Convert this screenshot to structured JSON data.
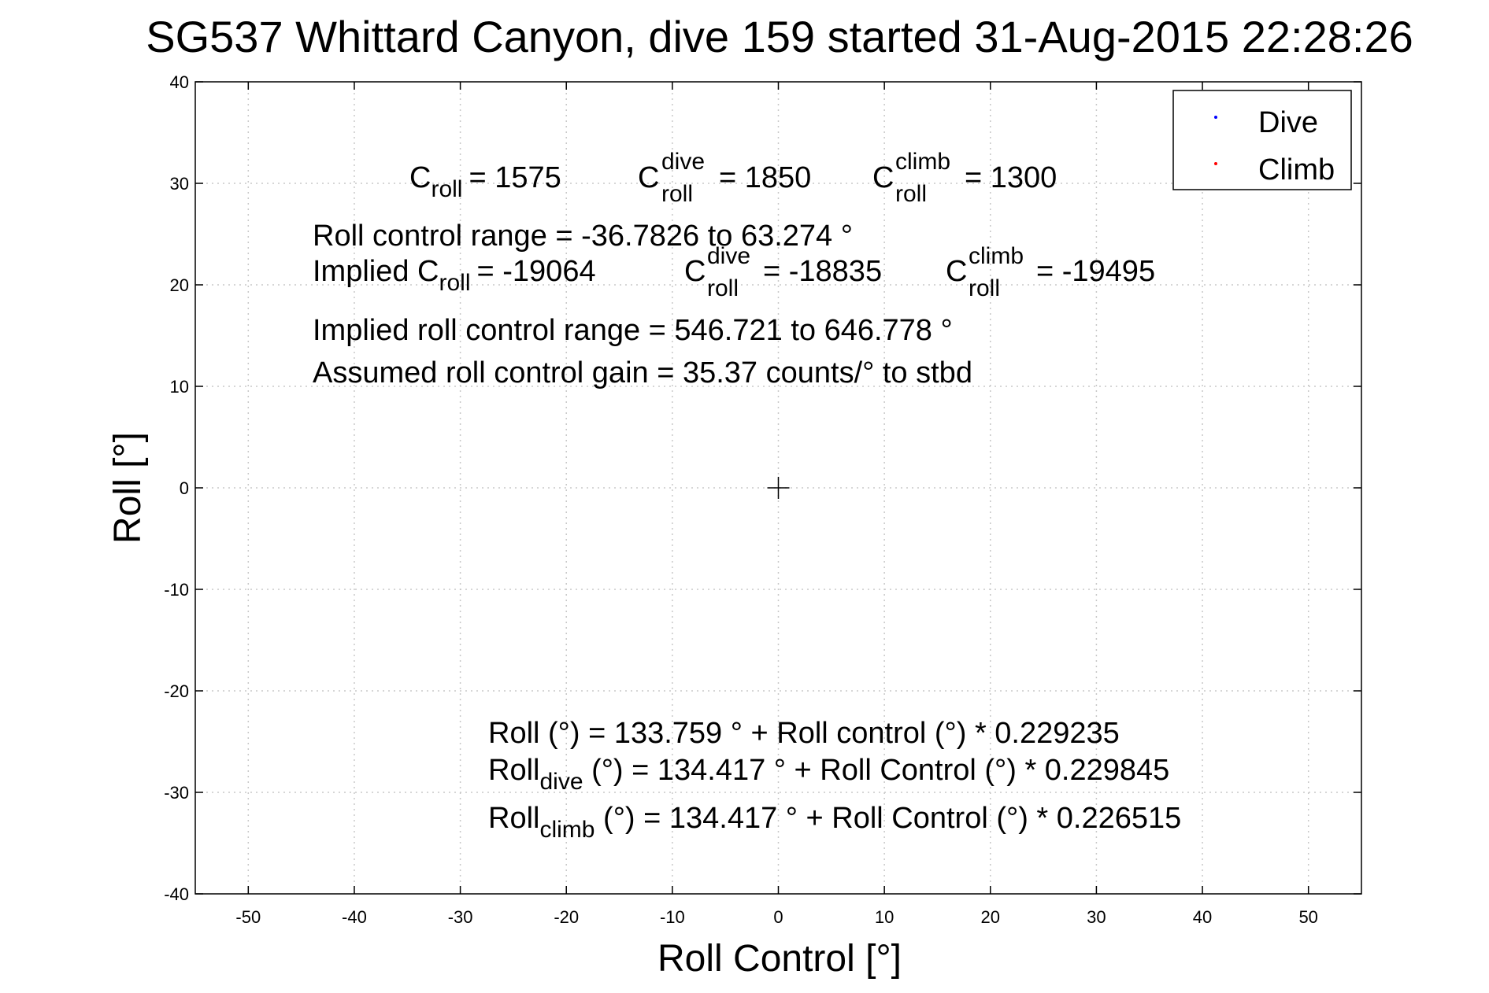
{
  "chart_data": {
    "type": "scatter",
    "title": "SG537 Whittard Canyon, dive 159 started 31-Aug-2015 22:28:26",
    "xlabel": "Roll Control [°]",
    "ylabel": "Roll [°]",
    "xlim": [
      -55,
      55
    ],
    "ylim": [
      -40,
      40
    ],
    "x_ticks": [
      -50,
      -40,
      -30,
      -20,
      -10,
      0,
      10,
      20,
      30,
      40,
      50
    ],
    "y_ticks": [
      40,
      30,
      20,
      10,
      0,
      -10,
      -20,
      -30,
      -40
    ],
    "x_tick_labels": [
      "-50",
      "-40",
      "-30",
      "-20",
      "-10",
      "0",
      "10",
      "20",
      "30",
      "40",
      "50"
    ],
    "y_tick_labels": [
      "40",
      "30",
      "20",
      "10",
      "0",
      "-10",
      "-20",
      "-30",
      "-40"
    ],
    "grid": true,
    "legend_position": "top-right",
    "series": [
      {
        "name": "Dive",
        "color": "#0000ff",
        "x": [],
        "y": []
      },
      {
        "name": "Climb",
        "color": "#ff0000",
        "x": [],
        "y": []
      }
    ],
    "center_marker": {
      "x": 0,
      "y": 0,
      "symbol": "+"
    },
    "annotations": {
      "line1": {
        "c_roll": {
          "base": "C",
          "sub": "roll",
          "value": "= 1575"
        },
        "c_roll_dive": {
          "base": "C",
          "sup": "dive",
          "sub": "roll",
          "value": "= 1850"
        },
        "c_roll_climb": {
          "base": "C",
          "sup": "climb",
          "sub": "roll",
          "value": "= 1300"
        }
      },
      "roll_control_range": "Roll control range = -36.7826 to 63.274 °",
      "implied_line": {
        "implied_c_roll": {
          "prefix": "Implied C",
          "sub": "roll",
          "value": "= -19064"
        },
        "implied_c_roll_dive": {
          "base": "C",
          "sup": "dive",
          "sub": "roll",
          "value": "= -18835"
        },
        "implied_c_roll_climb": {
          "base": "C",
          "sup": "climb",
          "sub": "roll",
          "value": "= -19495"
        }
      },
      "implied_range": "Implied roll control range = 546.721 to 646.778 °",
      "assumed_gain": "Assumed roll control gain = 35.37 counts/° to stbd",
      "fit_all": "Roll (°) = 133.759 ° + Roll control (°) * 0.229235",
      "fit_dive": {
        "base": "Roll",
        "sub": "dive",
        "rest": " (°) = 134.417 ° + Roll Control (°) * 0.229845"
      },
      "fit_climb": {
        "base": "Roll",
        "sub": "climb",
        "rest": " (°) = 134.417 ° + Roll Control (°) * 0.226515"
      }
    }
  }
}
